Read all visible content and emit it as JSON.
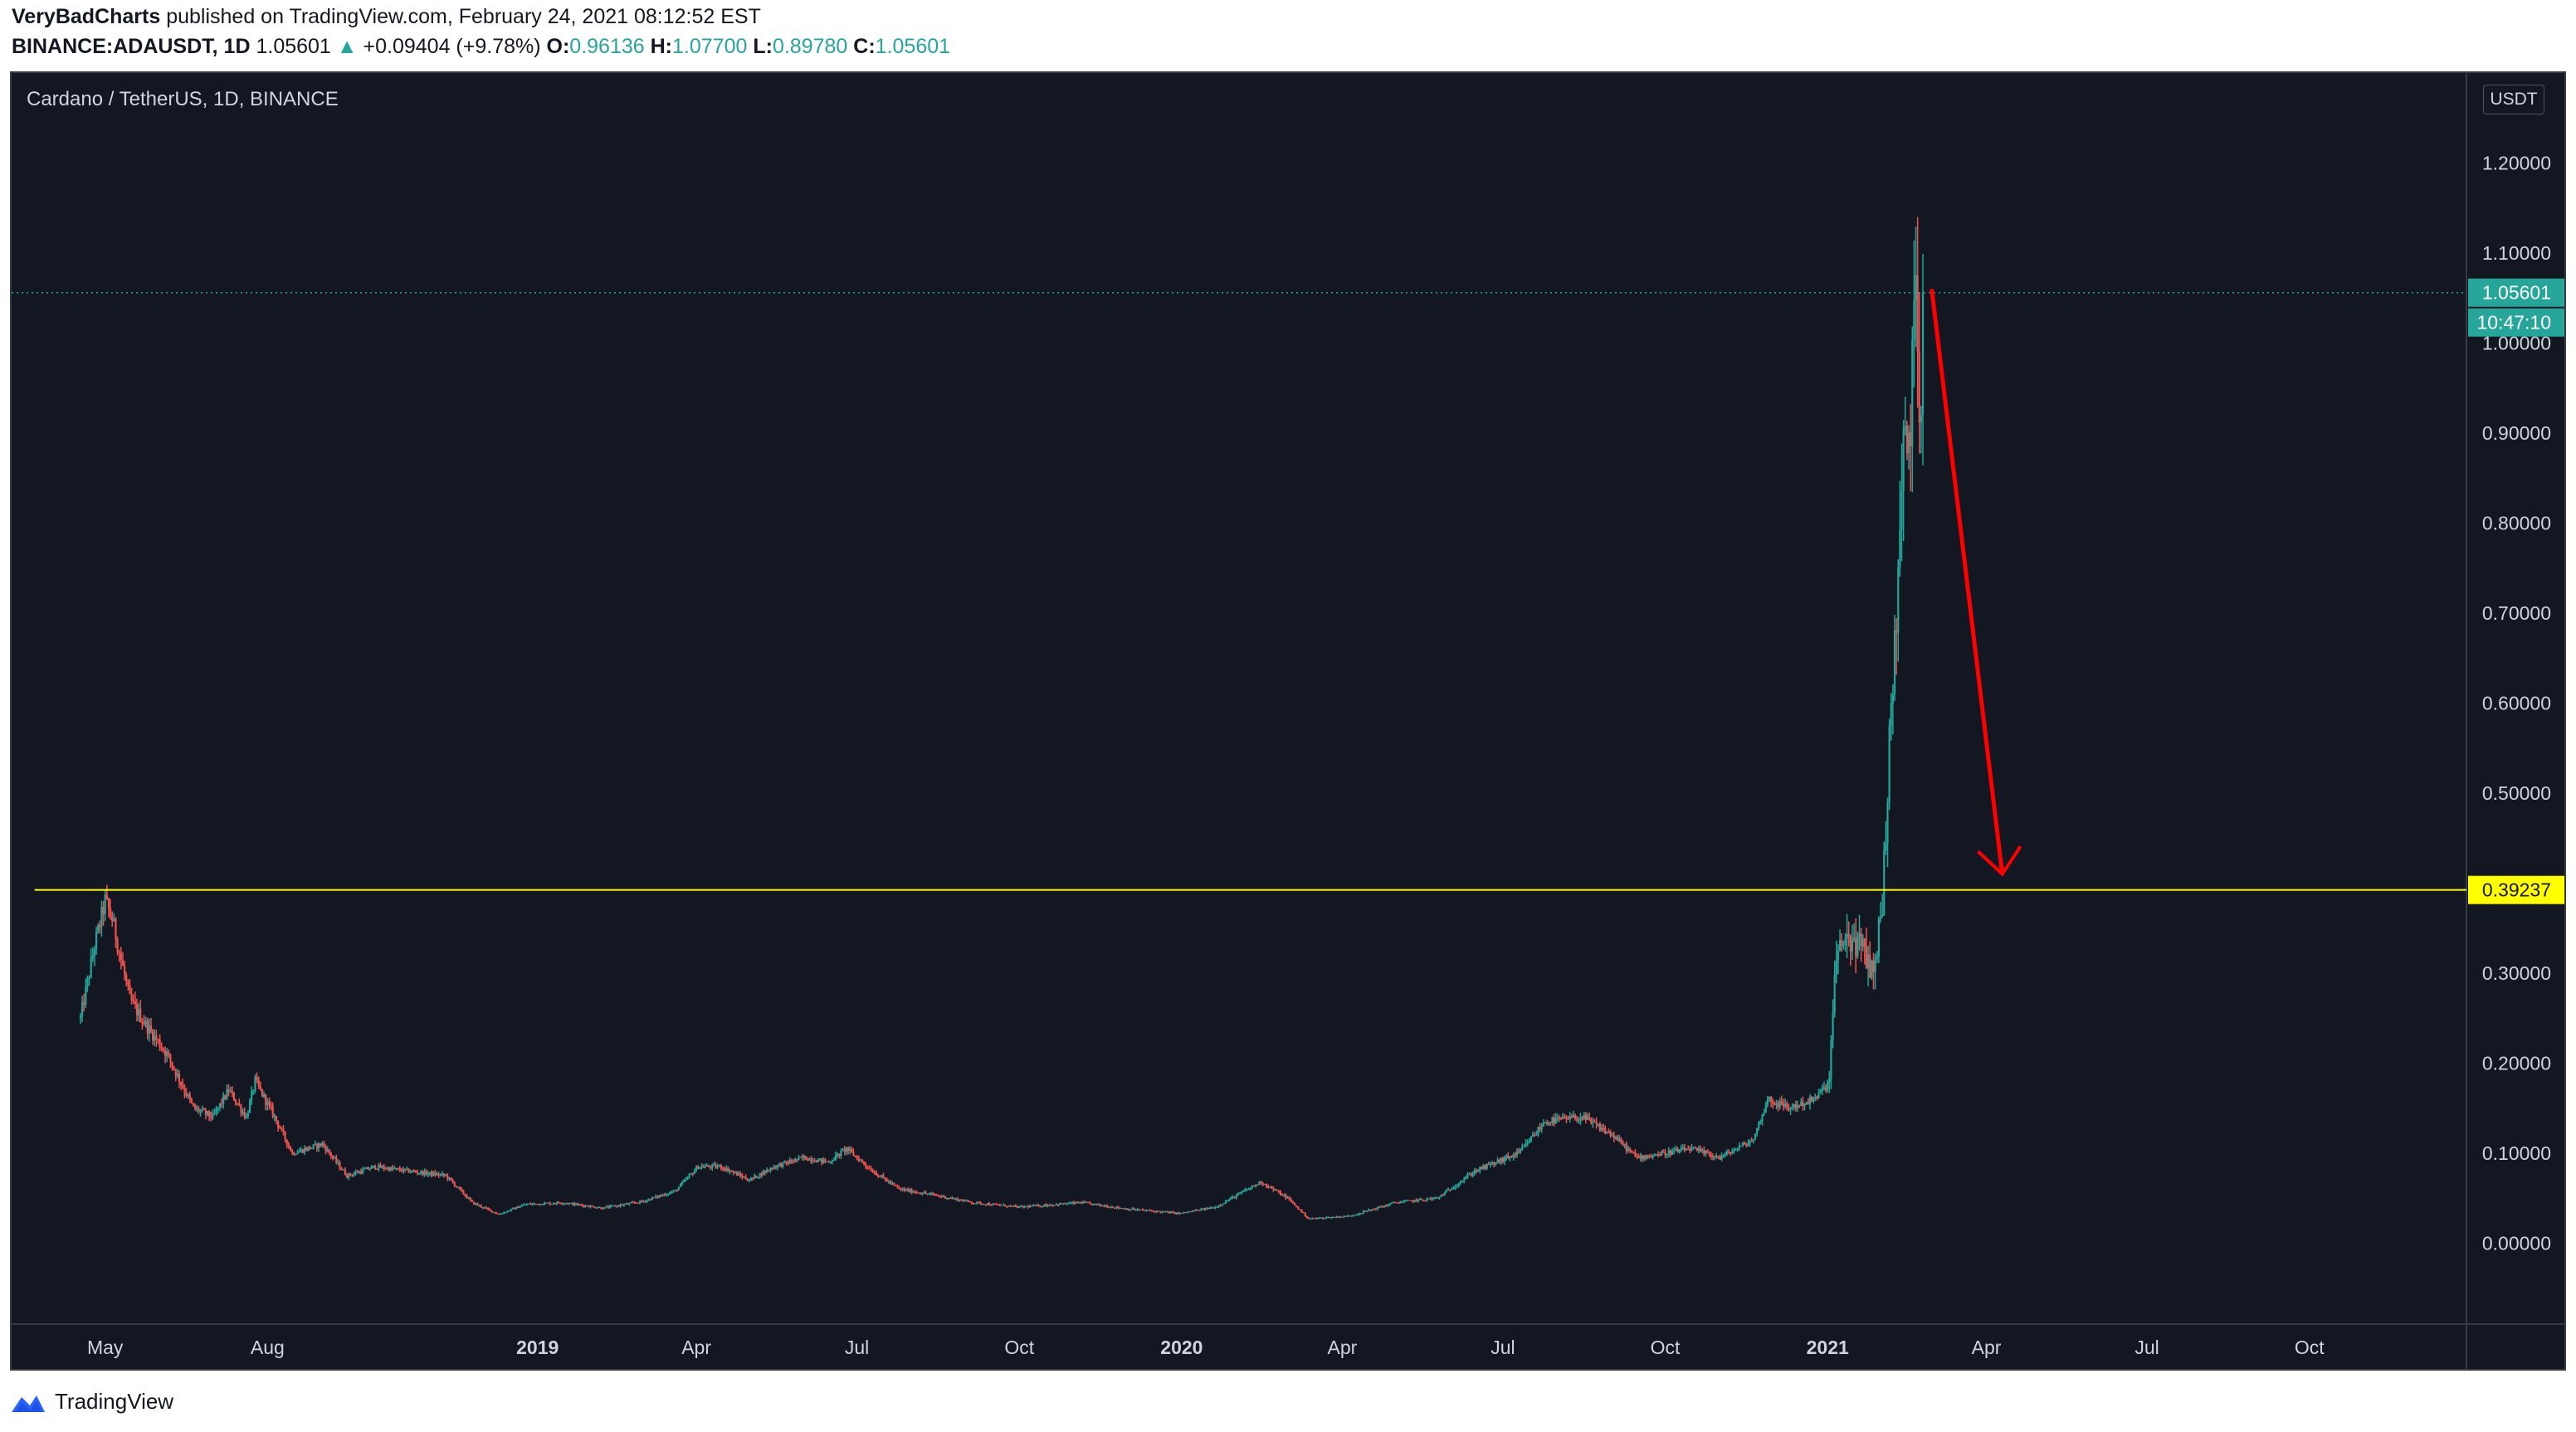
{
  "header": {
    "author": "VeryBadCharts",
    "published_text": "published on TradingView.com, February 24, 2021 08:12:52 EST",
    "symbol_line": "BINANCE:ADAUSDT, 1D",
    "last": "1.05601",
    "change_arrow": "▲",
    "change": "+0.09404 (+9.78%)",
    "o_label": "O:",
    "o_val": "0.96136",
    "h_label": "H:",
    "h_val": "1.07700",
    "l_label": "L:",
    "l_val": "0.89780",
    "c_label": "C:",
    "c_val": "1.05601"
  },
  "pane_title": "Cardano / TetherUS, 1D, BINANCE",
  "currency": "USDT",
  "footer": {
    "brand": "TradingView",
    "logo_icon": "tradingview-logo-icon"
  },
  "colors": {
    "background": "#131722",
    "up": "#26a69a",
    "down": "#ef5350",
    "support_line": "#ffff00",
    "arrow": "#ff0000"
  },
  "chart_data": {
    "type": "candlestick",
    "title": "Cardano / TetherUS, 1D, BINANCE",
    "y_unit": "USDT",
    "ylim": [
      -0.09,
      1.3
    ],
    "y_ticks": [
      "0.00000",
      "0.10000",
      "0.20000",
      "0.30000",
      "0.40000",
      "0.50000",
      "0.60000",
      "0.70000",
      "0.80000",
      "0.90000",
      "1.00000",
      "1.10000",
      "1.20000"
    ],
    "x_ticks": [
      {
        "label": "May",
        "date": "2018-05-01",
        "bold": false
      },
      {
        "label": "Aug",
        "date": "2018-08-01",
        "bold": false
      },
      {
        "label": "2019",
        "date": "2019-01-01",
        "bold": true
      },
      {
        "label": "Apr",
        "date": "2019-04-01",
        "bold": false
      },
      {
        "label": "Jul",
        "date": "2019-07-01",
        "bold": false
      },
      {
        "label": "Oct",
        "date": "2019-10-01",
        "bold": false
      },
      {
        "label": "2020",
        "date": "2020-01-01",
        "bold": true
      },
      {
        "label": "Apr",
        "date": "2020-04-01",
        "bold": false
      },
      {
        "label": "Jul",
        "date": "2020-07-01",
        "bold": false
      },
      {
        "label": "Oct",
        "date": "2020-10-01",
        "bold": false
      },
      {
        "label": "2021",
        "date": "2021-01-01",
        "bold": true
      },
      {
        "label": "Apr",
        "date": "2021-04-01",
        "bold": false
      },
      {
        "label": "Jul",
        "date": "2021-07-01",
        "bold": false
      },
      {
        "label": "Oct",
        "date": "2021-10-01",
        "bold": false
      }
    ],
    "x_range": [
      "2018-03-09",
      "2021-12-29"
    ],
    "price_profile": [
      [
        "2018-04-17",
        0.25
      ],
      [
        "2018-04-25",
        0.33
      ],
      [
        "2018-05-01",
        0.38
      ],
      [
        "2018-05-05",
        0.36
      ],
      [
        "2018-05-15",
        0.27
      ],
      [
        "2018-05-25",
        0.24
      ],
      [
        "2018-06-05",
        0.21
      ],
      [
        "2018-06-20",
        0.15
      ],
      [
        "2018-07-01",
        0.14
      ],
      [
        "2018-07-10",
        0.17
      ],
      [
        "2018-07-20",
        0.14
      ],
      [
        "2018-07-25",
        0.18
      ],
      [
        "2018-08-05",
        0.14
      ],
      [
        "2018-08-15",
        0.1
      ],
      [
        "2018-09-01",
        0.11
      ],
      [
        "2018-09-15",
        0.075
      ],
      [
        "2018-10-01",
        0.085
      ],
      [
        "2018-10-20",
        0.08
      ],
      [
        "2018-11-10",
        0.075
      ],
      [
        "2018-11-25",
        0.045
      ],
      [
        "2018-12-10",
        0.032
      ],
      [
        "2018-12-25",
        0.043
      ],
      [
        "2019-01-15",
        0.045
      ],
      [
        "2019-02-07",
        0.039
      ],
      [
        "2019-03-01",
        0.046
      ],
      [
        "2019-03-20",
        0.058
      ],
      [
        "2019-04-02",
        0.085
      ],
      [
        "2019-04-15",
        0.085
      ],
      [
        "2019-05-01",
        0.07
      ],
      [
        "2019-05-15",
        0.085
      ],
      [
        "2019-06-01",
        0.095
      ],
      [
        "2019-06-15",
        0.09
      ],
      [
        "2019-06-25",
        0.105
      ],
      [
        "2019-07-10",
        0.08
      ],
      [
        "2019-07-25",
        0.06
      ],
      [
        "2019-08-15",
        0.053
      ],
      [
        "2019-09-05",
        0.045
      ],
      [
        "2019-10-01",
        0.04
      ],
      [
        "2019-11-05",
        0.045
      ],
      [
        "2019-12-01",
        0.038
      ],
      [
        "2019-12-31",
        0.033
      ],
      [
        "2020-01-20",
        0.04
      ],
      [
        "2020-02-15",
        0.068
      ],
      [
        "2020-03-01",
        0.05
      ],
      [
        "2020-03-13",
        0.027
      ],
      [
        "2020-04-05",
        0.03
      ],
      [
        "2020-05-01",
        0.045
      ],
      [
        "2020-05-25",
        0.05
      ],
      [
        "2020-06-15",
        0.08
      ],
      [
        "2020-07-10",
        0.1
      ],
      [
        "2020-07-25",
        0.135
      ],
      [
        "2020-08-15",
        0.14
      ],
      [
        "2020-09-01",
        0.12
      ],
      [
        "2020-09-15",
        0.095
      ],
      [
        "2020-10-01",
        0.1
      ],
      [
        "2020-10-15",
        0.105
      ],
      [
        "2020-11-01",
        0.095
      ],
      [
        "2020-11-20",
        0.115
      ],
      [
        "2020-11-28",
        0.16
      ],
      [
        "2020-12-10",
        0.15
      ],
      [
        "2020-12-25",
        0.16
      ],
      [
        "2021-01-02",
        0.18
      ],
      [
        "2021-01-05",
        0.3
      ],
      [
        "2021-01-10",
        0.34
      ],
      [
        "2021-01-20",
        0.33
      ],
      [
        "2021-01-27",
        0.3
      ],
      [
        "2021-02-01",
        0.38
      ],
      [
        "2021-02-05",
        0.55
      ],
      [
        "2021-02-09",
        0.7
      ],
      [
        "2021-02-13",
        0.88
      ],
      [
        "2021-02-17",
        0.9
      ],
      [
        "2021-02-20",
        1.1
      ],
      [
        "2021-02-22",
        0.93
      ],
      [
        "2021-02-23",
        0.96
      ],
      [
        "2021-02-24",
        1.05601
      ]
    ],
    "support_level": 0.39237,
    "support_start_date": "2018-03-22",
    "last_price": 1.05601,
    "countdown": "10:47:10",
    "projection_arrow": {
      "from_date": "2021-03-01",
      "from_price": 1.06,
      "to_date": "2021-04-10",
      "to_price": 0.41
    }
  }
}
